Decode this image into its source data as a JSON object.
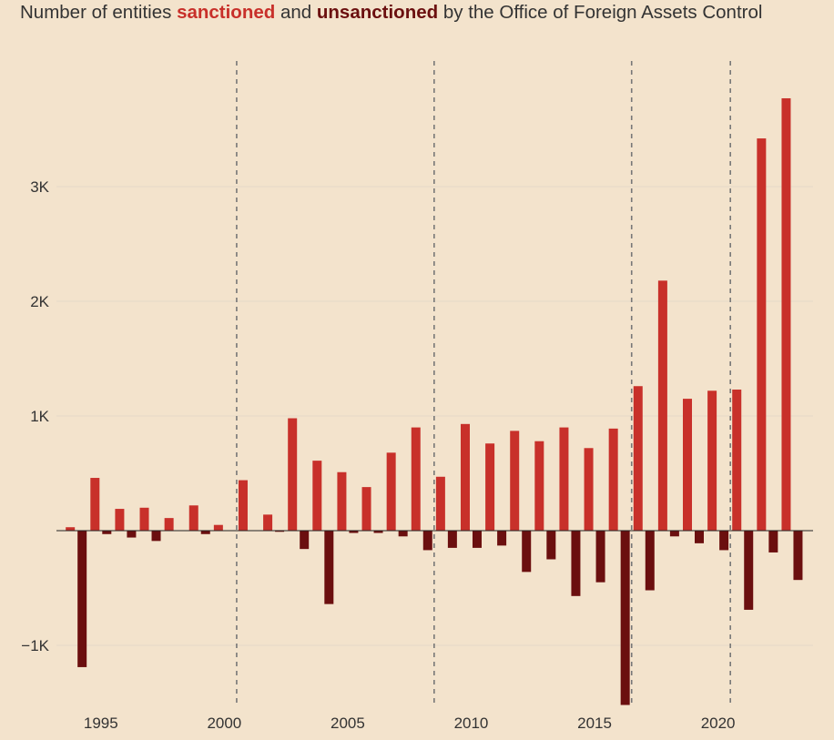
{
  "title": {
    "prefix": "Number of entities ",
    "sanctioned_word": "sanctioned",
    "middle": " and ",
    "unsanctioned_word": "unsanctioned",
    "suffix": " by the Office of Foreign Assets Control"
  },
  "colors": {
    "background": "#f3e3cc",
    "sanctioned": "#c8302a",
    "unsanctioned": "#6b0f0f",
    "gridline": "#e6dac8",
    "divider": "#777777"
  },
  "chart_data": {
    "type": "bar",
    "x": [
      1994,
      1995,
      1996,
      1997,
      1998,
      1999,
      2000,
      2001,
      2002,
      2003,
      2004,
      2005,
      2006,
      2007,
      2008,
      2009,
      2010,
      2011,
      2012,
      2013,
      2014,
      2015,
      2016,
      2017,
      2018,
      2019,
      2020,
      2021,
      2022,
      2023
    ],
    "series": [
      {
        "name": "sanctioned",
        "values": [
          30,
          460,
          190,
          200,
          110,
          220,
          50,
          440,
          140,
          980,
          610,
          510,
          380,
          680,
          900,
          470,
          930,
          760,
          870,
          780,
          900,
          720,
          890,
          1260,
          2180,
          1150,
          1220,
          1230,
          3420,
          3770
        ]
      },
      {
        "name": "unsanctioned",
        "values": [
          -1190,
          -30,
          -60,
          -90,
          0,
          -30,
          0,
          0,
          -10,
          -160,
          -640,
          -20,
          -20,
          -50,
          -170,
          -150,
          -150,
          -130,
          -360,
          -250,
          -570,
          -450,
          -1520,
          -520,
          -50,
          -110,
          -170,
          -690,
          -190,
          -430
        ]
      }
    ],
    "yticks": [
      -1000,
      1000,
      2000,
      3000
    ],
    "ytick_labels": [
      "−1K",
      "1K",
      "2K",
      "3K"
    ],
    "xticks": [
      1995,
      2000,
      2005,
      2010,
      2015,
      2020
    ],
    "xtick_labels": [
      "1995",
      "2000",
      "2005",
      "2010",
      "2015",
      "2020"
    ],
    "ylim": [
      -1520,
      4000
    ],
    "xlim": [
      1993.2,
      2023.85
    ],
    "divider_years": [
      2001,
      2009,
      2017,
      2021
    ],
    "grid": true,
    "legend": "in-title"
  }
}
